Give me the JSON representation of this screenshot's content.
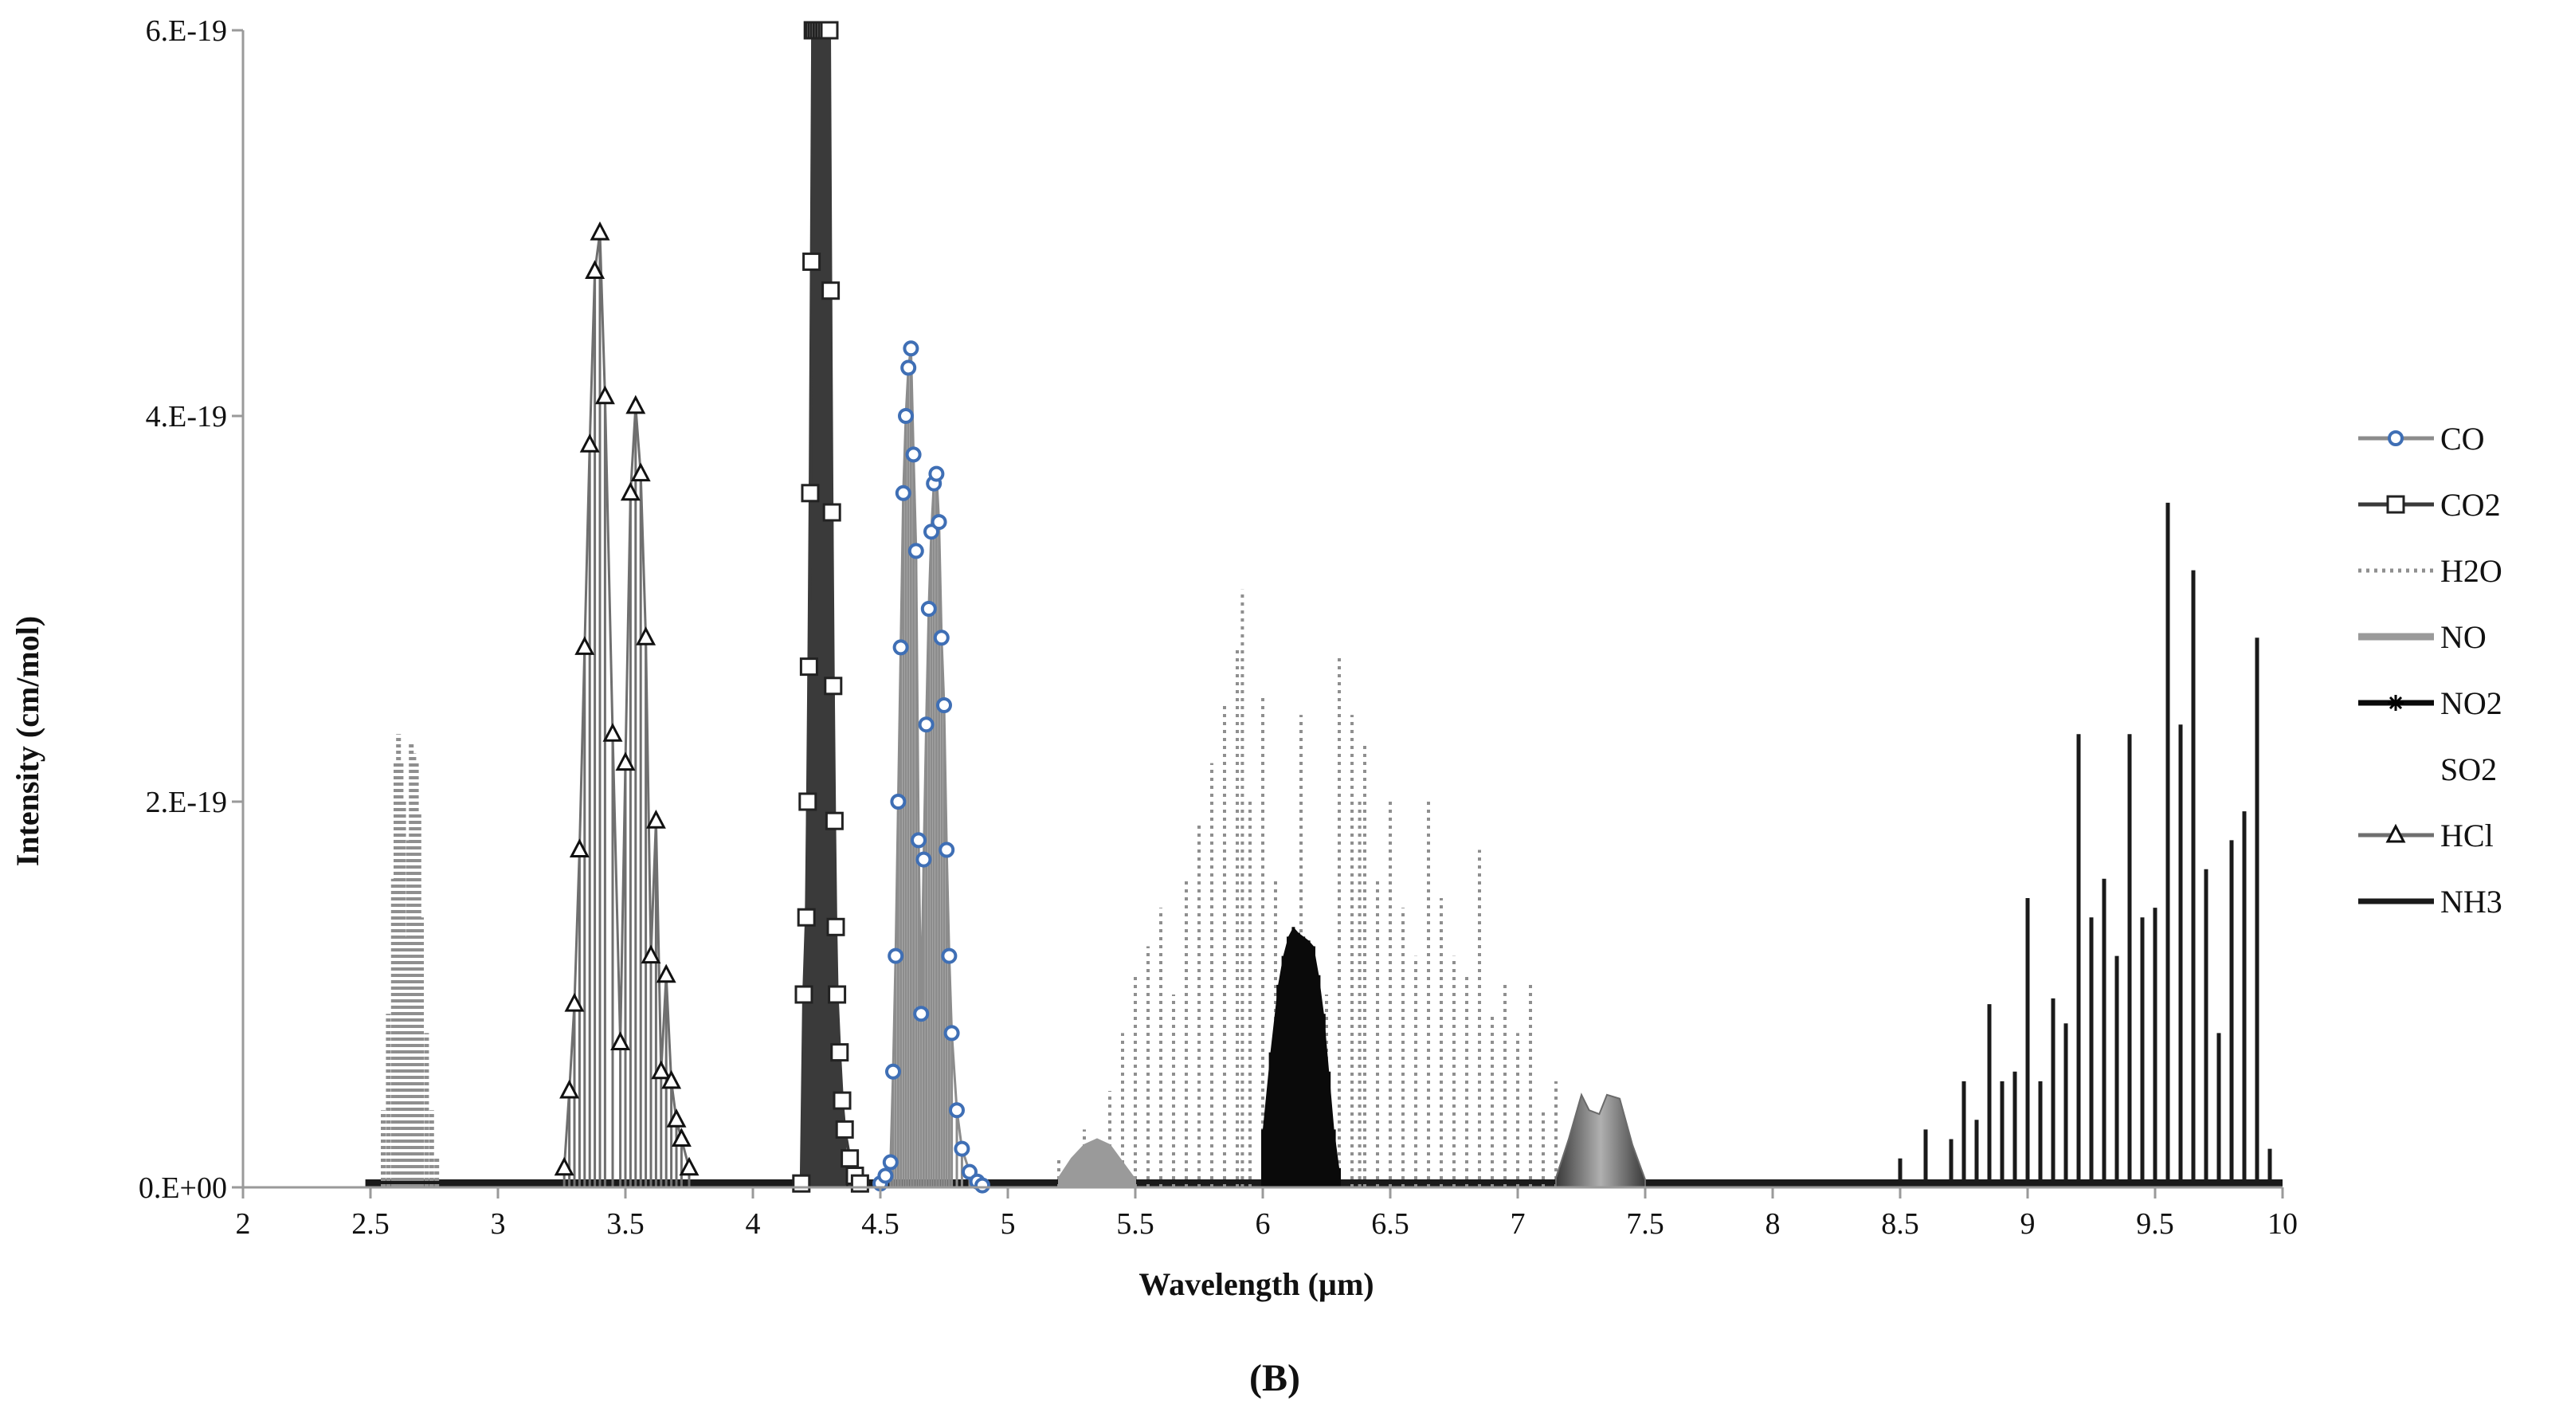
{
  "chart_data": {
    "type": "line",
    "panel_label": "(B)",
    "xlabel": "Wavelength (µm)",
    "ylabel": "Intensity (cm/mol)",
    "xlim": [
      2,
      10
    ],
    "ylim": [
      0,
      6e-19
    ],
    "x_ticks": [
      {
        "value": 2,
        "label": "2"
      },
      {
        "value": 2.5,
        "label": "2.5"
      },
      {
        "value": 3,
        "label": "3"
      },
      {
        "value": 3.5,
        "label": "3.5"
      },
      {
        "value": 4,
        "label": "4"
      },
      {
        "value": 4.5,
        "label": "4.5"
      },
      {
        "value": 5,
        "label": "5"
      },
      {
        "value": 5.5,
        "label": "5.5"
      },
      {
        "value": 6,
        "label": "6"
      },
      {
        "value": 6.5,
        "label": "6.5"
      },
      {
        "value": 7,
        "label": "7"
      },
      {
        "value": 7.5,
        "label": "7.5"
      },
      {
        "value": 8,
        "label": "8"
      },
      {
        "value": 8.5,
        "label": "8.5"
      },
      {
        "value": 9,
        "label": "9"
      },
      {
        "value": 9.5,
        "label": "9.5"
      },
      {
        "value": 10,
        "label": "10"
      }
    ],
    "y_ticks": [
      {
        "value": 0,
        "label": "0.E+00"
      },
      {
        "value": 2e-19,
        "label": "2.E-19"
      },
      {
        "value": 4e-19,
        "label": "4.E-19"
      },
      {
        "value": 6e-19,
        "label": "6.E-19"
      }
    ],
    "grid": false,
    "legend_position": "right",
    "series": [
      {
        "name": "CO",
        "style": {
          "type": "line-marker",
          "color": "#8c8c8c",
          "marker": "circle",
          "marker_fill": "#ffffff",
          "marker_stroke": "#3f6fb5",
          "width": 3
        },
        "x": [
          4.5,
          4.52,
          4.54,
          4.55,
          4.56,
          4.57,
          4.58,
          4.59,
          4.6,
          4.61,
          4.62,
          4.63,
          4.64,
          4.65,
          4.66,
          4.67,
          4.68,
          4.69,
          4.7,
          4.71,
          4.72,
          4.73,
          4.74,
          4.75,
          4.76,
          4.77,
          4.78,
          4.8,
          4.82,
          4.85,
          4.88,
          4.9
        ],
        "y": [
          2e-21,
          6e-21,
          1.3e-20,
          6e-20,
          1.2e-19,
          2e-19,
          2.8e-19,
          3.6e-19,
          4e-19,
          4.25e-19,
          4.35e-19,
          3.8e-19,
          3.3e-19,
          1.8e-19,
          9e-20,
          1.7e-19,
          2.4e-19,
          3e-19,
          3.4e-19,
          3.65e-19,
          3.7e-19,
          3.45e-19,
          2.85e-19,
          2.5e-19,
          1.75e-19,
          1.2e-19,
          8e-20,
          4e-20,
          2e-20,
          8e-21,
          3e-21,
          1e-21
        ]
      },
      {
        "name": "CO2",
        "style": {
          "type": "line-marker",
          "color": "#3a3a3a",
          "marker": "square",
          "marker_fill": "#ffffff",
          "marker_stroke": "#222222",
          "width": 4
        },
        "x": [
          4.19,
          4.2,
          4.21,
          4.215,
          4.22,
          4.225,
          4.23,
          4.235,
          4.24,
          4.25,
          4.26,
          4.27,
          4.28,
          4.29,
          4.3,
          4.305,
          4.31,
          4.315,
          4.32,
          4.325,
          4.33,
          4.34,
          4.35,
          4.36,
          4.38,
          4.4,
          4.42
        ],
        "y": [
          2e-21,
          1e-19,
          1.4e-19,
          2e-19,
          2.7e-19,
          3.6e-19,
          4.8e-19,
          6e-19,
          6e-19,
          6e-19,
          6e-19,
          6e-19,
          6e-19,
          6e-19,
          6e-19,
          4.65e-19,
          3.5e-19,
          2.6e-19,
          1.9e-19,
          1.35e-19,
          1e-19,
          7e-20,
          4.5e-20,
          3e-20,
          1.5e-20,
          6e-21,
          2e-21
        ]
      },
      {
        "name": "H2O",
        "style": {
          "type": "dotted-sticks",
          "color": "#8f8f8f",
          "width": 4
        },
        "x": [
          5.2,
          5.3,
          5.4,
          5.45,
          5.5,
          5.55,
          5.6,
          5.65,
          5.7,
          5.75,
          5.8,
          5.85,
          5.9,
          5.92,
          5.95,
          6.0,
          6.05,
          6.1,
          6.15,
          6.2,
          6.25,
          6.3,
          6.35,
          6.38,
          6.4,
          6.45,
          6.5,
          6.55,
          6.6,
          6.65,
          6.7,
          6.75,
          6.8,
          6.85,
          6.9,
          6.95,
          7.0,
          7.05,
          7.1,
          7.15,
          7.2
        ],
        "y": [
          1.5e-20,
          3e-20,
          5e-20,
          8e-20,
          1.1e-19,
          1.25e-19,
          1.45e-19,
          1e-19,
          1.6e-19,
          1.9e-19,
          2.2e-19,
          2.5e-19,
          2.8e-19,
          3.1e-19,
          2e-19,
          2.55e-19,
          1.6e-19,
          1.2e-19,
          2.45e-19,
          1.2e-19,
          1e-19,
          2.75e-19,
          2.45e-19,
          2e-19,
          2.3e-19,
          1.6e-19,
          2e-19,
          1.45e-19,
          1.2e-19,
          2e-19,
          1.5e-19,
          1.2e-19,
          1.1e-19,
          1.75e-19,
          9e-20,
          1.05e-19,
          8e-20,
          1.05e-19,
          4e-20,
          5.5e-20,
          2e-20
        ]
      },
      {
        "name": "NO",
        "style": {
          "type": "band",
          "color": "#9a9a9a",
          "width": 6
        },
        "x": [
          5.2,
          5.25,
          5.3,
          5.35,
          5.4,
          5.45,
          5.5
        ],
        "y": [
          5e-21,
          1.5e-20,
          2.2e-20,
          2.5e-20,
          2.2e-20,
          1.3e-20,
          4e-21
        ]
      },
      {
        "name": "NO2",
        "style": {
          "type": "dense-sticks",
          "color": "#0a0a0a",
          "marker": "asterisk",
          "width": 4
        },
        "x": [
          6.0,
          6.03,
          6.06,
          6.08,
          6.1,
          6.12,
          6.14,
          6.16,
          6.18,
          6.2,
          6.22,
          6.24,
          6.26,
          6.28,
          6.3
        ],
        "y": [
          3e-20,
          7e-20,
          1.05e-19,
          1.2e-19,
          1.3e-19,
          1.35e-19,
          1.32e-19,
          1.3e-19,
          1.28e-19,
          1.25e-19,
          1.1e-19,
          9e-20,
          6e-20,
          3e-20,
          1e-20
        ]
      },
      {
        "name": "SO2",
        "style": {
          "type": "gradient-band",
          "color": "#6a6a6a",
          "width": 6
        },
        "x": [
          7.15,
          7.2,
          7.25,
          7.28,
          7.32,
          7.35,
          7.4,
          7.45,
          7.5
        ],
        "y": [
          5e-21,
          2.5e-20,
          4.8e-20,
          4e-20,
          3.8e-20,
          4.8e-20,
          4.6e-20,
          2.2e-20,
          4e-21
        ]
      },
      {
        "name": "HCl",
        "style": {
          "type": "line-marker",
          "color": "#6f6f6f",
          "marker": "triangle",
          "marker_fill": "#ffffff",
          "marker_stroke": "#111111",
          "width": 3
        },
        "x": [
          3.26,
          3.28,
          3.3,
          3.32,
          3.34,
          3.36,
          3.38,
          3.4,
          3.42,
          3.45,
          3.48,
          3.5,
          3.52,
          3.54,
          3.56,
          3.58,
          3.6,
          3.62,
          3.64,
          3.66,
          3.68,
          3.7,
          3.72,
          3.75
        ],
        "y": [
          1e-20,
          5e-20,
          9.5e-20,
          1.75e-19,
          2.8e-19,
          3.85e-19,
          4.75e-19,
          4.95e-19,
          4.1e-19,
          2.35e-19,
          7.5e-20,
          2.2e-19,
          3.6e-19,
          4.05e-19,
          3.7e-19,
          2.85e-19,
          1.2e-19,
          1.9e-19,
          6e-20,
          1.1e-19,
          5.5e-20,
          3.5e-20,
          2.5e-20,
          1e-20
        ]
      },
      {
        "name": "NH3",
        "style": {
          "type": "sticks",
          "color": "#1a1a1a",
          "width": 5
        },
        "x": [
          8.5,
          8.6,
          8.7,
          8.75,
          8.8,
          8.85,
          8.9,
          8.95,
          9.0,
          9.05,
          9.1,
          9.15,
          9.2,
          9.25,
          9.3,
          9.35,
          9.4,
          9.45,
          9.5,
          9.55,
          9.6,
          9.65,
          9.7,
          9.75,
          9.8,
          9.85,
          9.9,
          9.95
        ],
        "y": [
          1.5e-20,
          3e-20,
          2.5e-20,
          5.5e-20,
          3.5e-20,
          9.5e-20,
          5.5e-20,
          6e-20,
          1.5e-19,
          5.5e-20,
          9.8e-20,
          8.5e-20,
          2.35e-19,
          1.4e-19,
          1.6e-19,
          1.2e-19,
          2.35e-19,
          1.4e-19,
          1.45e-19,
          3.55e-19,
          2.4e-19,
          3.2e-19,
          1.65e-19,
          8e-20,
          1.8e-19,
          1.95e-19,
          2.85e-19,
          2e-20
        ]
      }
    ]
  }
}
